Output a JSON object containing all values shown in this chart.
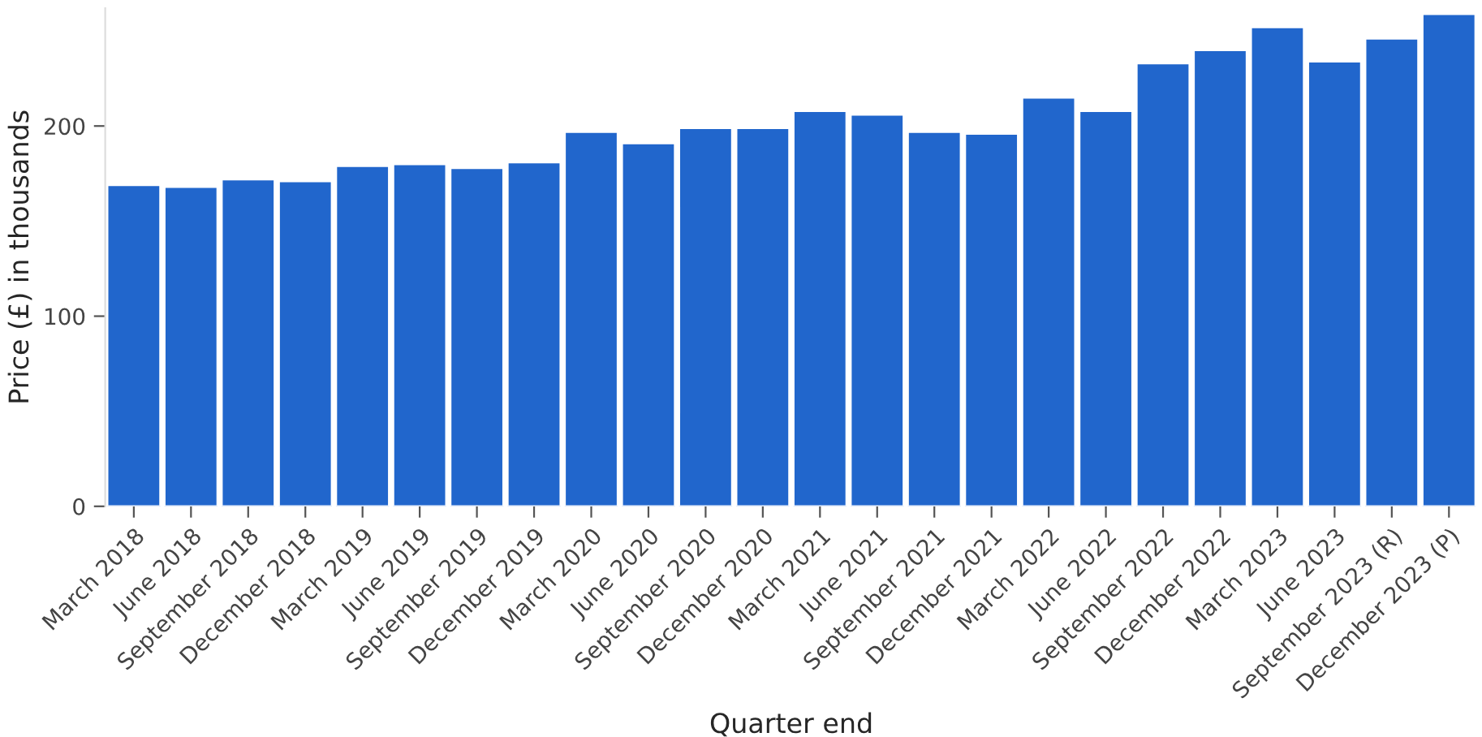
{
  "chart_data": {
    "type": "bar",
    "xlabel": "Quarter end",
    "ylabel": "Price (£) in thousands",
    "categories": [
      "March 2018",
      "June 2018",
      "September 2018",
      "December 2018",
      "March 2019",
      "June 2019",
      "September 2019",
      "December 2019",
      "March 2020",
      "June 2020",
      "September 2020",
      "December 2020",
      "March 2021",
      "June 2021",
      "September 2021",
      "December 2021",
      "March 2022",
      "June 2022",
      "September 2022",
      "December 2022",
      "March 2023",
      "June 2023",
      "September 2023 (R)",
      "December 2023 (P)"
    ],
    "values": [
      169,
      168,
      172,
      171,
      179,
      180,
      178,
      181,
      197,
      191,
      199,
      199,
      208,
      206,
      197,
      196,
      215,
      208,
      233,
      240,
      252,
      234,
      246,
      259
    ],
    "color": "#2166cc",
    "ylim": [
      0,
      262
    ],
    "yticks": [
      0,
      100,
      200
    ],
    "grid": false
  }
}
